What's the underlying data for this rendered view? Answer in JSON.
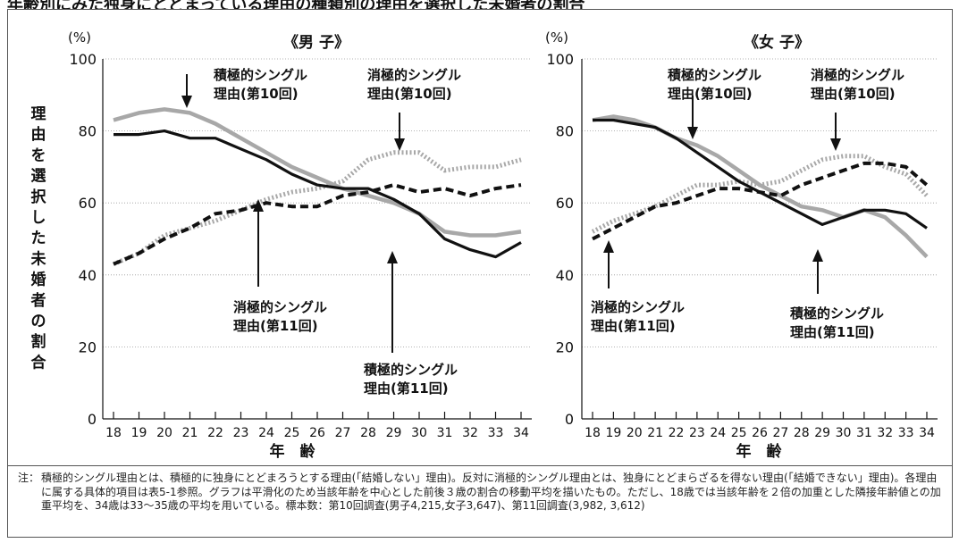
{
  "page_header": "年齢別にみた独身にとどまっている理由の種類別の理由を選択した未婚者の割合",
  "note": {
    "label": "注：",
    "text": "積極的シングル理由とは、積極的に独身にとどまろうとする理由(「結婚しない」理由)。反対に消極的シングル理由とは、独身にとどまらざるを得ない理由(「結婚できない」理由)。各理由に属する具体的項目は表5-1参照。グラフは平滑化のため当該年齢を中心とした前後３歳の割合の移動平均を描いたもの。ただし、18歳では当該年齢を２倍の加重とした隣接年齢値との加重平均を、34歳は33〜35歳の平均を用いている。標本数：第10回調査(男子4,215,女子3,647)、第11回調査(3,982, 3,612)"
  },
  "y_axis_label": "理由を選択した未婚者の割合",
  "series_styles": {
    "positive_10": {
      "color": "#9a9a9a",
      "style": "solid-gray"
    },
    "negative_10": {
      "color": "#9a9a9a",
      "style": "dotted-gray"
    },
    "positive_11": {
      "color": "#111111",
      "style": "solid-black"
    },
    "negative_11": {
      "color": "#111111",
      "style": "dashed-black"
    }
  },
  "chart_data": [
    {
      "type": "line",
      "title": "《男 子》",
      "xlabel": "年　齢",
      "ylabel": "理由を選択した未婚者の割合",
      "unit_label": "(%)",
      "x": [
        18,
        19,
        20,
        21,
        22,
        23,
        24,
        25,
        26,
        27,
        28,
        29,
        30,
        31,
        32,
        33,
        34
      ],
      "ylim": [
        0,
        100
      ],
      "yticks": [
        0,
        20,
        40,
        60,
        80,
        100
      ],
      "grid": true,
      "series": [
        {
          "key": "positive_10",
          "values": [
            83,
            85,
            86,
            85,
            82,
            78,
            74,
            70,
            67,
            64,
            62,
            60,
            57,
            52,
            51,
            51,
            52
          ]
        },
        {
          "key": "negative_10",
          "values": [
            43,
            46,
            51,
            53,
            55,
            58,
            61,
            63,
            64,
            66,
            72,
            74,
            74,
            69,
            70,
            70,
            72
          ]
        },
        {
          "key": "positive_11",
          "values": [
            79,
            79,
            80,
            78,
            78,
            75,
            72,
            68,
            65,
            64,
            64,
            61,
            57,
            50,
            47,
            45,
            49
          ]
        },
        {
          "key": "negative_11",
          "values": [
            43,
            46,
            50,
            53,
            57,
            58,
            60,
            59,
            59,
            62,
            63,
            65,
            63,
            64,
            62,
            64,
            65
          ]
        }
      ],
      "annotations": [
        {
          "series": "positive_10",
          "lines": [
            "積極的シングル",
            "理由(第10回)"
          ]
        },
        {
          "series": "negative_10",
          "lines": [
            "消極的シングル",
            "理由(第10回)"
          ]
        },
        {
          "series": "negative_11",
          "lines": [
            "消極的シングル",
            "理由(第11回)"
          ]
        },
        {
          "series": "positive_11",
          "lines": [
            "積極的シングル",
            "理由(第11回)"
          ]
        }
      ]
    },
    {
      "type": "line",
      "title": "《女 子》",
      "xlabel": "年　齢",
      "unit_label": "(%)",
      "x": [
        18,
        19,
        20,
        21,
        22,
        23,
        24,
        25,
        26,
        27,
        28,
        29,
        30,
        31,
        32,
        33,
        34
      ],
      "ylim": [
        0,
        100
      ],
      "yticks": [
        0,
        20,
        40,
        60,
        80,
        100
      ],
      "grid": true,
      "series": [
        {
          "key": "positive_10",
          "values": [
            83,
            84,
            83,
            81,
            78,
            76,
            73,
            69,
            65,
            62,
            59,
            58,
            56,
            58,
            56,
            51,
            45
          ]
        },
        {
          "key": "negative_10",
          "values": [
            52,
            55,
            57,
            59,
            62,
            65,
            65,
            66,
            65,
            66,
            69,
            72,
            73,
            73,
            70,
            68,
            62
          ]
        },
        {
          "key": "positive_11",
          "values": [
            83,
            83,
            82,
            81,
            78,
            74,
            70,
            66,
            63,
            60,
            57,
            54,
            56,
            58,
            58,
            57,
            53
          ]
        },
        {
          "key": "negative_11",
          "values": [
            50,
            53,
            56,
            59,
            60,
            62,
            64,
            64,
            63,
            62,
            65,
            67,
            69,
            71,
            71,
            70,
            65
          ]
        }
      ],
      "annotations": [
        {
          "series": "positive_10",
          "lines": [
            "積極的シングル",
            "理由(第10回)"
          ]
        },
        {
          "series": "negative_10",
          "lines": [
            "消極的シングル",
            "理由(第10回)"
          ]
        },
        {
          "series": "negative_11",
          "lines": [
            "消極的シングル",
            "理由(第11回)"
          ]
        },
        {
          "series": "positive_11",
          "lines": [
            "積極的シングル",
            "理由(第11回)"
          ]
        }
      ]
    }
  ]
}
